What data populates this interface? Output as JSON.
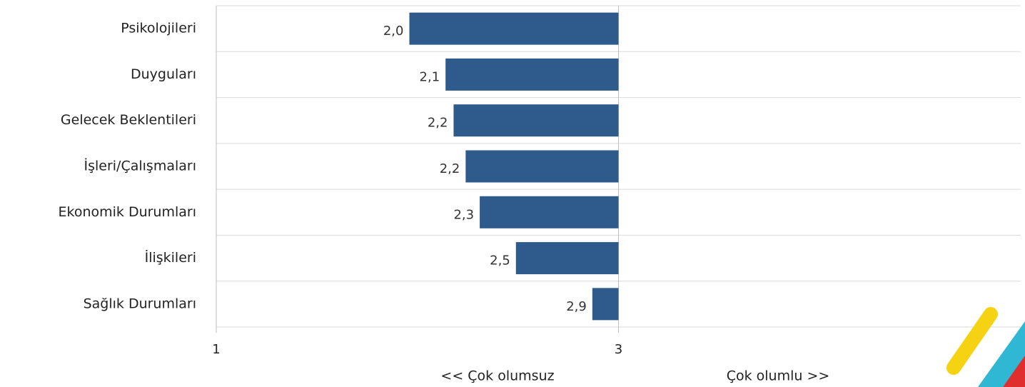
{
  "chart_data": {
    "type": "bar",
    "orientation": "horizontal",
    "categories": [
      "Psikolojileri",
      "Duyguları",
      "Gelecek Beklentileri",
      "İşleri/Çalışmaları",
      "Ekonomik Durumları",
      "İlişkileri",
      "Sağlık Durumları"
    ],
    "values": [
      1.96,
      2.14,
      2.18,
      2.24,
      2.31,
      2.49,
      2.87
    ],
    "value_labels": [
      "2,0",
      "2,1",
      "2,2",
      "2,2",
      "2,3",
      "2,5",
      "2,9"
    ],
    "color": "#2f5a8c",
    "bar_base": 3,
    "xlim": [
      1,
      5
    ],
    "xticks": [
      1,
      3
    ],
    "grid": true,
    "annotations": [
      "<< Çok olumsuz",
      "Çok olumlu >>"
    ]
  }
}
